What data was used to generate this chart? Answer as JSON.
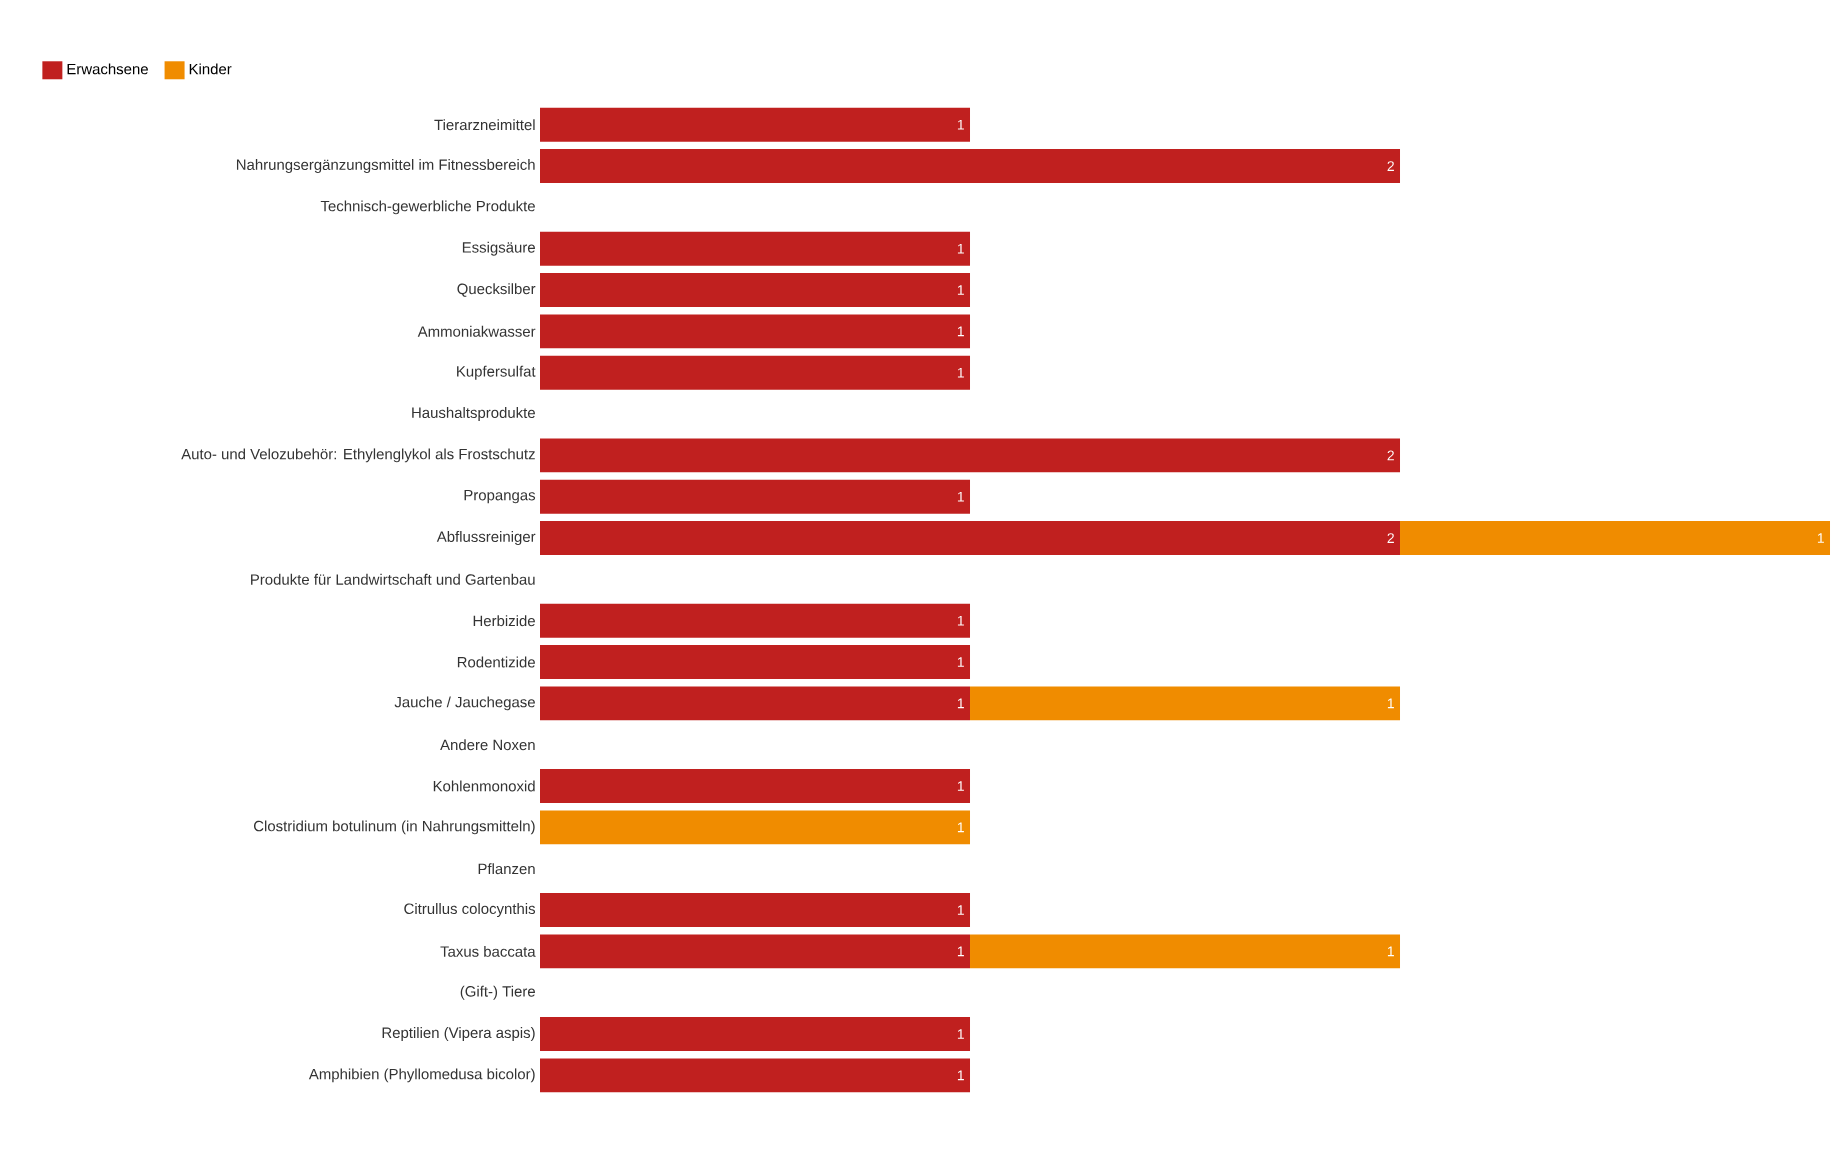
{
  "chart_data": {
    "type": "bar",
    "orientation": "horizontal",
    "stacked": true,
    "data_labels": true,
    "legend": "top left",
    "tick_labels": "y",
    "grid": false,
    "xlim": [
      0,
      3
    ],
    "categories": [
      "Tierarzneimittel",
      "Nahrungsergänzungsmittel im Fitnessbereich",
      "Technisch-gewerbliche Produkte",
      "Essigsäure",
      "Quecksilber",
      "Ammoniakwasser",
      "Kupfersulfat",
      "Haushaltsprodukte",
      "Auto- und Velozubehör: Ethylenglykol als Frostschutz",
      "Propangas",
      "Abflussreiniger",
      "Produkte für Landwirtschaft und Gartenbau",
      "Herbizide",
      "Rodentizide",
      "Jauche / Jauchegase",
      "Andere Noxen",
      "Kohlenmonoxid",
      "Clostridium botulinum (in Nahrungsmitteln)",
      "Pflanzen",
      "Citrullus colocynthis",
      "Taxus baccata",
      "(Gift-) Tiere",
      "Reptilien (Vipera aspis)",
      "Amphibien (Phyllomedusa bicolor)"
    ],
    "series": [
      {
        "name": "Erwachsene",
        "color": "#c0201f",
        "values": [
          1,
          2,
          null,
          1,
          1,
          1,
          1,
          null,
          2,
          1,
          2,
          null,
          1,
          1,
          1,
          null,
          1,
          null,
          null,
          1,
          1,
          null,
          1,
          1
        ]
      },
      {
        "name": "Kinder",
        "color": "#f08c00",
        "values": [
          null,
          null,
          null,
          null,
          null,
          null,
          null,
          null,
          null,
          null,
          1,
          null,
          null,
          null,
          1,
          null,
          null,
          1,
          null,
          null,
          1,
          null,
          null,
          null
        ]
      }
    ]
  }
}
